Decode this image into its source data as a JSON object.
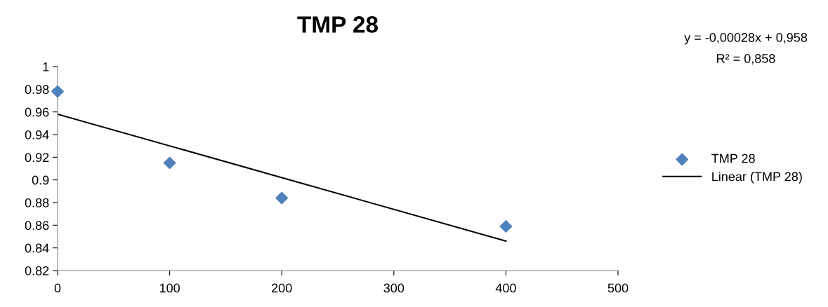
{
  "chart_data": {
    "type": "scatter",
    "title": "TMP 28",
    "annotations": [
      "y = -0,00028x + 0,958",
      "R² = 0,858"
    ],
    "x": [
      0,
      100,
      200,
      400
    ],
    "series": [
      {
        "name": "TMP 28",
        "color": "#4f81bd",
        "marker": "diamond",
        "values": [
          0.978,
          0.915,
          0.884,
          0.859
        ]
      },
      {
        "name": "Linear (TMP 28)",
        "type": "line",
        "color": "#000000",
        "marker": "none",
        "line_style": "solid",
        "x": [
          0,
          400
        ],
        "values": [
          0.958,
          0.846
        ]
      }
    ],
    "xlim": [
      0,
      500
    ],
    "xticks": [
      0,
      100,
      200,
      300,
      400,
      500
    ],
    "ylim": [
      0.82,
      1
    ],
    "yticks": [
      0.82,
      0.84,
      0.86,
      0.88,
      0.9,
      0.92,
      0.94,
      0.96,
      0.98,
      1
    ],
    "grid": false,
    "legend": "right"
  }
}
